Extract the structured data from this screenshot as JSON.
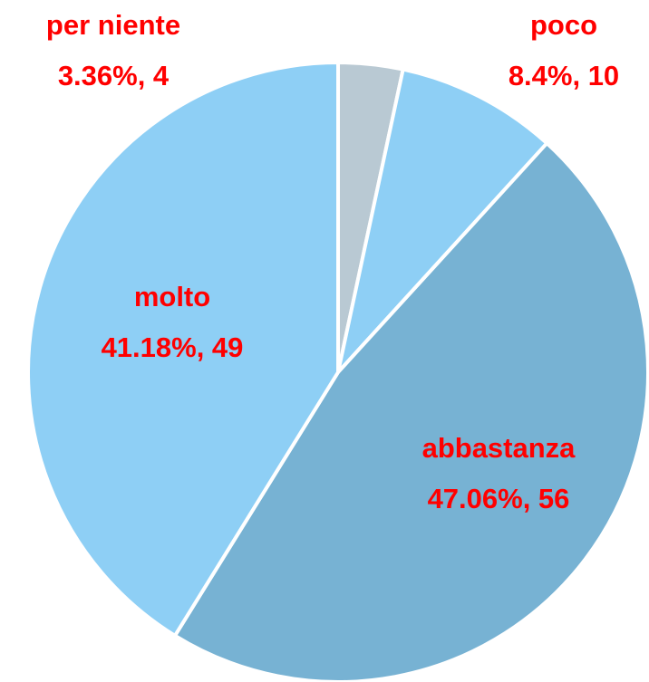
{
  "chart_data": {
    "type": "pie",
    "categories": [
      "per niente",
      "poco",
      "abbastanza",
      "molto"
    ],
    "values": [
      3.36,
      8.4,
      47.06,
      41.18
    ],
    "value_labels": [
      "3.36%, 4",
      "8.4%, 10",
      "47.06%, 56",
      "41.18%, 49"
    ],
    "colors": [
      "#b9c9d3",
      "#8ecff5",
      "#77b2d3",
      "#8ecff5"
    ]
  }
}
